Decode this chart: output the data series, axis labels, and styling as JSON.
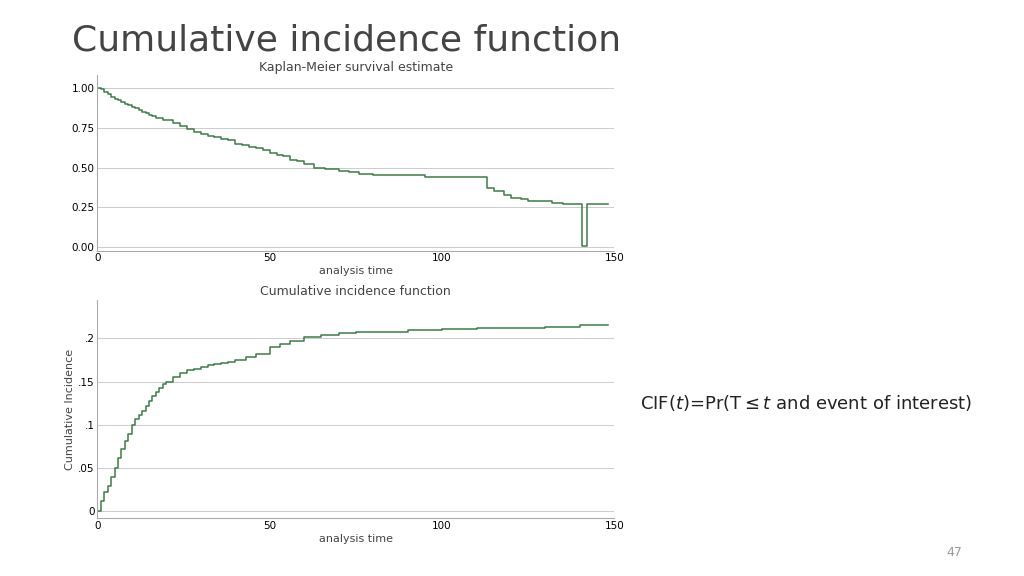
{
  "title": "Cumulative incidence function",
  "title_fontsize": 26,
  "title_color": "#444444",
  "background_color": "#ffffff",
  "plot_bg_color": "#ffffff",
  "line_color": "#3a7d44",
  "grid_color": "#cccccc",
  "km_title": "Kaplan-Meier survival estimate",
  "km_xlabel": "analysis time",
  "km_ylabel": "",
  "km_yticks": [
    0.0,
    0.25,
    0.5,
    0.75,
    1.0
  ],
  "km_ytick_labels": [
    "0.00",
    "0.25",
    "0.50",
    "0.75",
    "1.00"
  ],
  "km_xlim": [
    0,
    150
  ],
  "km_ylim": [
    -0.02,
    1.08
  ],
  "cif_title": "Cumulative incidence function",
  "cif_xlabel": "analysis time",
  "cif_ylabel": "Cumulative Incidence",
  "cif_yticks": [
    0,
    0.05,
    0.1,
    0.15,
    0.2
  ],
  "cif_ytick_labels": [
    "0",
    ".05",
    ".1",
    ".15",
    ".2"
  ],
  "cif_xlim": [
    0,
    150
  ],
  "cif_ylim": [
    -0.008,
    0.245
  ],
  "page_number": "47",
  "font_family": "DejaVu Sans",
  "spine_color": "#aaaaaa",
  "tick_labelsize": 7.5,
  "axis_labelsize": 8,
  "plot_title_fontsize": 9
}
